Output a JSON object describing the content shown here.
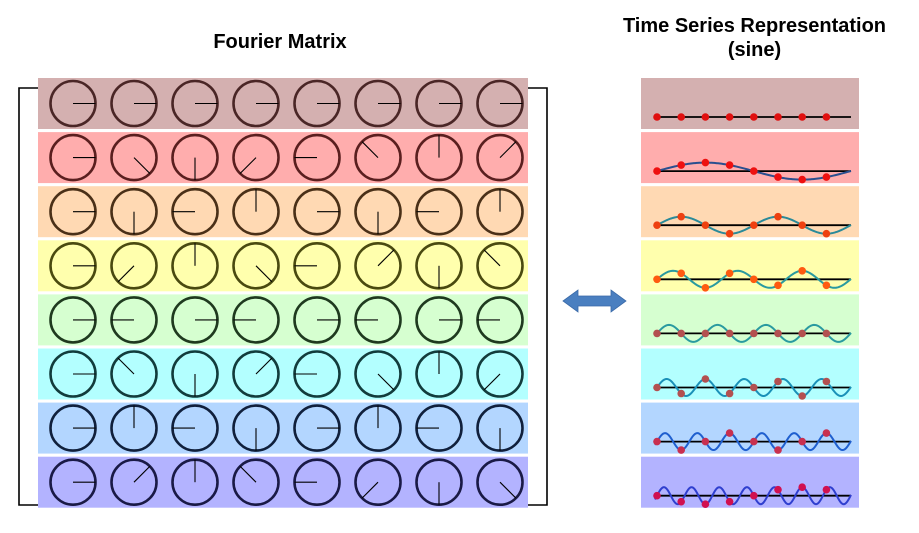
{
  "diagram": {
    "left_title": "Fourier Matrix",
    "right_title_line1": "Time Series Representation",
    "right_title_line2": "(sine)",
    "matrix_size": 8,
    "row_colors": [
      "#d4b0b0",
      "#ffadad",
      "#ffd9b3",
      "#ffffad",
      "#d6ffd0",
      "#b3ffff",
      "#b3d6ff",
      "#b3b3ff"
    ],
    "circle_colors": [
      "#4a2626",
      "#5a1f1f",
      "#4a3018",
      "#4a4a10",
      "#1f3a1f",
      "#123c3c",
      "#10203c",
      "#1a1a46"
    ],
    "wave_colors": [
      "#1f3a7a",
      "#2a4f8f",
      "#2a8a99",
      "#2a9aa0",
      "#2a9aa0",
      "#1a90b8",
      "#1f5fcf",
      "#2f3fcf"
    ],
    "dot_colors": [
      "#e01010",
      "#ee1010",
      "#ee4010",
      "#ff5a10",
      "#b35050",
      "#b35050",
      "#c83050",
      "#d01050"
    ],
    "arrow_color": "#4a7fc0"
  }
}
